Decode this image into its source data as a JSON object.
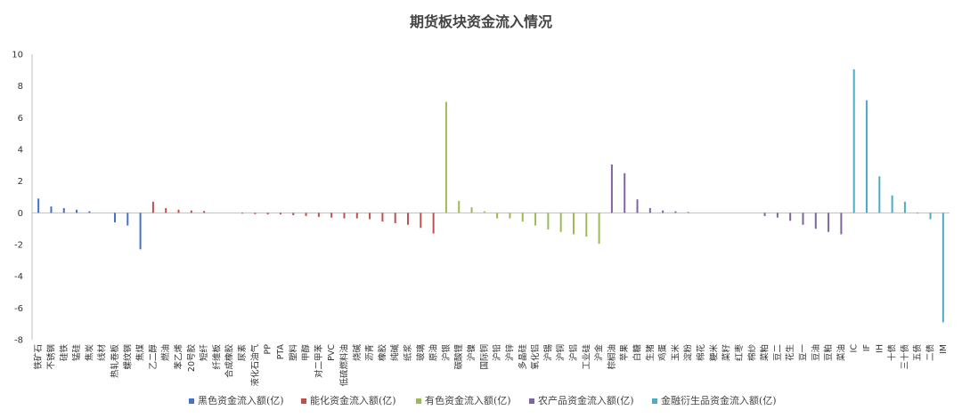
{
  "chart_data": {
    "type": "bar",
    "title": "期货板块资金流入情况",
    "ylim": [
      -8,
      10
    ],
    "yticks": [
      10,
      8,
      6,
      4,
      2,
      0,
      -2,
      -4,
      -6,
      -8
    ],
    "grid": false,
    "legend_position": "bottom",
    "series": [
      {
        "name": "黑色资金流入额(亿)",
        "color": "#4472C4",
        "categories": [
          "铁矿石",
          "不锈钢",
          "硅铁",
          "锰硅",
          "焦炭",
          "线材",
          "热轧卷板",
          "螺纹钢",
          "焦煤"
        ],
        "values": [
          0.9,
          0.4,
          0.3,
          0.2,
          0.1,
          0.0,
          -0.6,
          -0.8,
          -2.3
        ]
      },
      {
        "name": "能化资金流入额(亿)",
        "color": "#C0504D",
        "categories": [
          "乙二醇",
          "燃油",
          "苯乙烯",
          "20号胶",
          "短纤",
          "纤维板",
          "合成橡胶",
          "尿素",
          "液化石油气",
          "PP",
          "PTA",
          "塑料",
          "甲醇",
          "对二甲苯",
          "PVC",
          "低硫燃料油",
          "烧碱",
          "沥青",
          "橡胶",
          "纯碱",
          "纸浆",
          "玻璃",
          "原油"
        ],
        "values": [
          0.7,
          0.3,
          0.2,
          0.15,
          0.12,
          0.0,
          0.0,
          -0.05,
          -0.08,
          -0.1,
          -0.1,
          -0.15,
          -0.2,
          -0.25,
          -0.3,
          -0.35,
          -0.35,
          -0.4,
          -0.55,
          -0.65,
          -0.75,
          -0.95,
          -1.3
        ]
      },
      {
        "name": "有色资金流入额(亿)",
        "color": "#9BBB59",
        "categories": [
          "沪银",
          "碳酸锂",
          "沪镍",
          "国际铜",
          "沪铅",
          "沪锌",
          "多晶硅",
          "氧化铝",
          "沪锡",
          "沪铜",
          "沪铝",
          "工业硅",
          "沪金"
        ],
        "values": [
          7.0,
          0.75,
          0.35,
          0.1,
          -0.35,
          -0.35,
          -0.55,
          -0.8,
          -1.05,
          -1.2,
          -1.35,
          -1.5,
          -1.95
        ]
      },
      {
        "name": "农产品资金流入额(亿)",
        "color": "#8064A2",
        "categories": [
          "棕榈油",
          "苹果",
          "白糖",
          "生猪",
          "鸡蛋",
          "玉米",
          "淀粉",
          "棉花",
          "粳米",
          "菜籽",
          "红枣",
          "棉纱",
          "菜粕",
          "豆二",
          "花生",
          "豆一",
          "豆油",
          "豆粕",
          "菜油"
        ],
        "values": [
          3.05,
          2.5,
          0.85,
          0.3,
          0.15,
          0.1,
          0.05,
          0.0,
          0.0,
          0.0,
          0.0,
          0.0,
          -0.2,
          -0.3,
          -0.5,
          -0.75,
          -1.0,
          -1.2,
          -1.35
        ]
      },
      {
        "name": "金融衍生品资金流入额(亿)",
        "color": "#4BACC6",
        "categories": [
          "IC",
          "IF",
          "IH",
          "十债",
          "三十债",
          "五债",
          "二债",
          "IM"
        ],
        "values": [
          9.05,
          7.1,
          2.3,
          1.1,
          0.7,
          -0.05,
          -0.4,
          -6.9
        ]
      }
    ]
  }
}
